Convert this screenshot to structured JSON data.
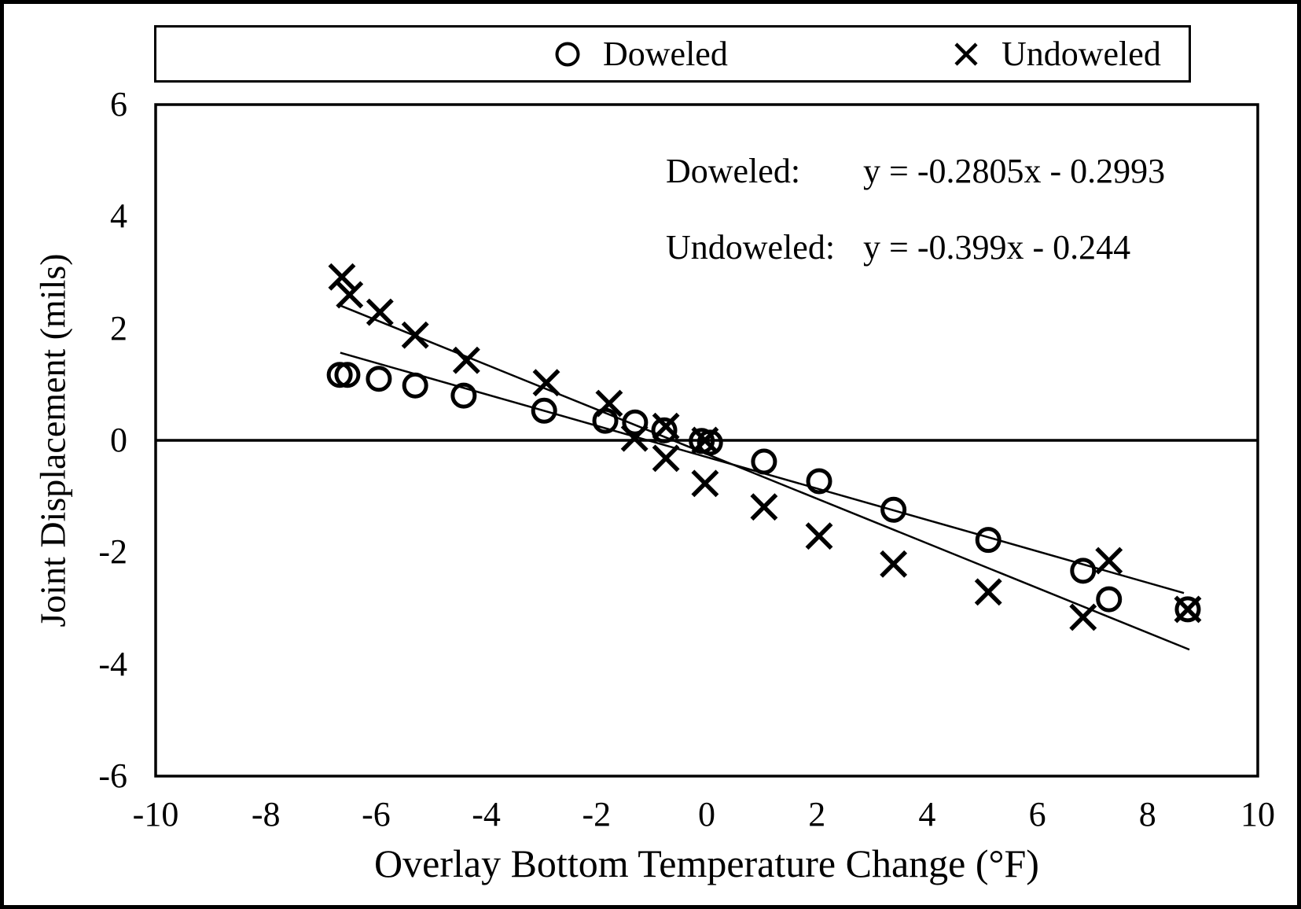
{
  "window": {
    "background_color": "#ffffff",
    "foreground_color": "#000000"
  },
  "legend": {
    "items": [
      {
        "label": "Doweled",
        "marker": "circle"
      },
      {
        "label": "Undoweled",
        "marker": "x"
      }
    ]
  },
  "annotations": [
    {
      "label": "Doweled:",
      "equation": "y = -0.2805x - 0.2993"
    },
    {
      "label": "Undoweled:",
      "equation": "y = -0.399x - 0.244"
    }
  ],
  "chart_data": {
    "type": "scatter",
    "title": "",
    "xlabel": "Overlay Bottom Temperature Change (°F)",
    "ylabel": "Joint Displacement (mils)",
    "xlim": [
      -10,
      10
    ],
    "ylim": [
      -6,
      6
    ],
    "x_ticks": [
      "-10",
      "-8",
      "-6",
      "-4",
      "-2",
      "0",
      "2",
      "4",
      "6",
      "8",
      "10"
    ],
    "y_ticks": [
      "6",
      "4",
      "2",
      "0",
      "-2",
      "-4",
      "-6"
    ],
    "grid": false,
    "zero_line": true,
    "legend_position": "top",
    "marker_color": "#000000",
    "series": [
      {
        "name": "Doweled",
        "marker": "circle",
        "points": [
          [
            -6.66,
            1.17
          ],
          [
            -6.52,
            1.17
          ],
          [
            -5.95,
            1.1
          ],
          [
            -5.29,
            0.98
          ],
          [
            -4.41,
            0.8
          ],
          [
            -2.95,
            0.53
          ],
          [
            -1.84,
            0.35
          ],
          [
            -1.3,
            0.32
          ],
          [
            -0.77,
            0.18
          ],
          [
            -0.09,
            -0.01
          ],
          [
            0.06,
            -0.04
          ],
          [
            1.04,
            -0.38
          ],
          [
            2.04,
            -0.73
          ],
          [
            3.39,
            -1.24
          ],
          [
            5.11,
            -1.78
          ],
          [
            6.83,
            -2.33
          ],
          [
            7.3,
            -2.84
          ],
          [
            8.73,
            -3.02
          ]
        ],
        "trendline": {
          "slope": -0.2805,
          "intercept": -0.2993,
          "x_start": -6.65,
          "x_end": 8.66,
          "equation": "y = -0.2805x - 0.2993"
        }
      },
      {
        "name": "Undoweled",
        "marker": "x",
        "points": [
          [
            -6.62,
            2.92
          ],
          [
            -6.48,
            2.6
          ],
          [
            -5.93,
            2.29
          ],
          [
            -5.29,
            1.88
          ],
          [
            -4.36,
            1.43
          ],
          [
            -2.91,
            1.03
          ],
          [
            -1.77,
            0.66
          ],
          [
            -1.31,
            0.04
          ],
          [
            -0.74,
            0.25
          ],
          [
            -0.74,
            -0.32
          ],
          [
            -0.03,
            0.0
          ],
          [
            -0.03,
            -0.77
          ],
          [
            1.04,
            -1.19
          ],
          [
            2.04,
            -1.71
          ],
          [
            3.39,
            -2.21
          ],
          [
            5.11,
            -2.71
          ],
          [
            6.83,
            -3.16
          ],
          [
            7.3,
            -2.15
          ],
          [
            8.73,
            -3.02
          ]
        ],
        "trendline": {
          "slope": -0.399,
          "intercept": -0.244,
          "x_start": -6.65,
          "x_end": 8.76,
          "equation": "y = -0.399x - 0.244"
        }
      }
    ]
  }
}
